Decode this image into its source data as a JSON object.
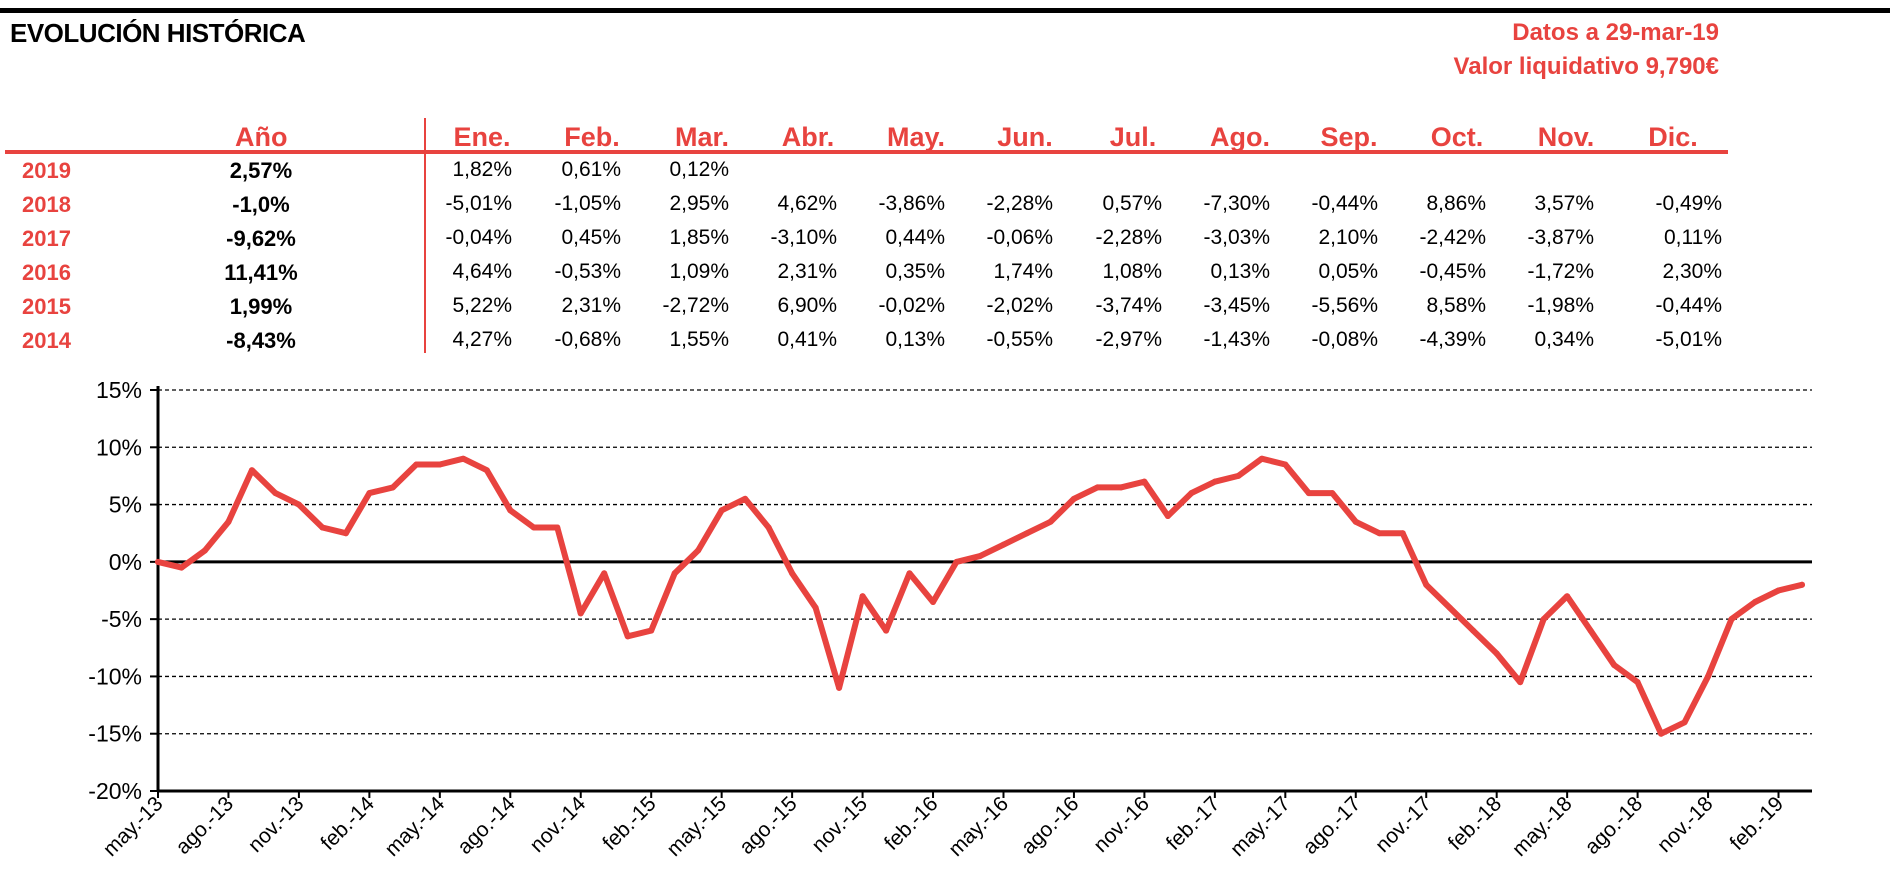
{
  "header": {
    "title": "EVOLUCIÓN HISTÓRICA",
    "date_label": "Datos a 29-mar-19",
    "nav_label": "Valor liquidativo 9,790€"
  },
  "table": {
    "year_header": "Año",
    "months": [
      "Ene.",
      "Feb.",
      "Mar.",
      "Abr.",
      "May.",
      "Jun.",
      "Jul.",
      "Ago.",
      "Sep.",
      "Oct.",
      "Nov.",
      "Dic."
    ],
    "rows": [
      {
        "year": "2019",
        "total": "2,57%",
        "values": [
          "1,82%",
          "0,61%",
          "0,12%",
          "",
          "",
          "",
          "",
          "",
          "",
          "",
          "",
          ""
        ]
      },
      {
        "year": "2018",
        "total": "-1,0%",
        "values": [
          "-5,01%",
          "-1,05%",
          "2,95%",
          "4,62%",
          "-3,86%",
          "-2,28%",
          "0,57%",
          "-7,30%",
          "-0,44%",
          "8,86%",
          "3,57%",
          "-0,49%"
        ]
      },
      {
        "year": "2017",
        "total": "-9,62%",
        "values": [
          "-0,04%",
          "0,45%",
          "1,85%",
          "-3,10%",
          "0,44%",
          "-0,06%",
          "-2,28%",
          "-3,03%",
          "2,10%",
          "-2,42%",
          "-3,87%",
          "0,11%"
        ]
      },
      {
        "year": "2016",
        "total": "11,41%",
        "values": [
          "4,64%",
          "-0,53%",
          "1,09%",
          "2,31%",
          "0,35%",
          "1,74%",
          "1,08%",
          "0,13%",
          "0,05%",
          "-0,45%",
          "-1,72%",
          "2,30%"
        ]
      },
      {
        "year": "2015",
        "total": "1,99%",
        "values": [
          "5,22%",
          "2,31%",
          "-2,72%",
          "6,90%",
          "-0,02%",
          "-2,02%",
          "-3,74%",
          "-3,45%",
          "-5,56%",
          "8,58%",
          "-1,98%",
          "-0,44%"
        ]
      },
      {
        "year": "2014",
        "total": "-8,43%",
        "values": [
          "4,27%",
          "-0,68%",
          "1,55%",
          "0,41%",
          "0,13%",
          "-0,55%",
          "-2,97%",
          "-1,43%",
          "-0,08%",
          "-4,39%",
          "0,34%",
          "-5,01%"
        ]
      }
    ]
  },
  "chart_data": {
    "type": "line",
    "title": "",
    "xlabel": "",
    "ylabel": "",
    "ylim": [
      -20,
      15
    ],
    "yticks": [
      15,
      10,
      5,
      0,
      -5,
      -10,
      -15,
      -20
    ],
    "ytick_labels": [
      "15%",
      "10%",
      "5%",
      "0%",
      "-5%",
      "-10%",
      "-15%",
      "-20%"
    ],
    "xtick_labels": [
      "may.-13",
      "ago.-13",
      "nov.-13",
      "feb.-14",
      "may.-14",
      "ago.-14",
      "nov.-14",
      "feb.-15",
      "may.-15",
      "ago.-15",
      "nov.-15",
      "feb.-16",
      "may.-16",
      "ago.-16",
      "nov.-16",
      "feb.-17",
      "may.-17",
      "ago.-17",
      "nov.-17",
      "feb.-18",
      "may.-18",
      "ago.-18",
      "nov.-18",
      "feb.-19"
    ],
    "grid": "horizontal-dashed",
    "line_color": "#e8433f",
    "series": [
      {
        "x": [
          "may.-13",
          "jun.-13",
          "jul.-13",
          "ago.-13",
          "sep.-13",
          "oct.-13",
          "nov.-13",
          "dic.-13",
          "ene.-14",
          "feb.-14",
          "mar.-14",
          "abr.-14",
          "may.-14",
          "jun.-14",
          "jul.-14",
          "ago.-14",
          "sep.-14",
          "oct.-14",
          "nov.-14",
          "dic.-14",
          "ene.-15",
          "feb.-15",
          "mar.-15",
          "abr.-15",
          "may.-15",
          "jun.-15",
          "jul.-15",
          "ago.-15",
          "sep.-15",
          "oct.-15",
          "nov.-15",
          "dic.-15",
          "ene.-16",
          "feb.-16",
          "mar.-16",
          "abr.-16",
          "may.-16",
          "jun.-16",
          "jul.-16",
          "ago.-16",
          "sep.-16",
          "oct.-16",
          "nov.-16",
          "dic.-16",
          "ene.-17",
          "feb.-17",
          "mar.-17",
          "abr.-17",
          "may.-17",
          "jun.-17",
          "jul.-17",
          "ago.-17",
          "sep.-17",
          "oct.-17",
          "nov.-17",
          "dic.-17",
          "ene.-18",
          "feb.-18",
          "mar.-18",
          "abr.-18",
          "may.-18",
          "jun.-18",
          "jul.-18",
          "ago.-18",
          "sep.-18",
          "oct.-18",
          "nov.-18",
          "dic.-18",
          "ene.-19",
          "feb.-19",
          "mar.-19"
        ],
        "values": [
          0,
          -0.5,
          1,
          3.5,
          8,
          6,
          5,
          3,
          2.5,
          6,
          6.5,
          8.5,
          8.5,
          9,
          8,
          4.5,
          3,
          3,
          -4.5,
          -1,
          -6.5,
          -6,
          -1,
          1,
          4.5,
          5.5,
          3,
          -1,
          -4,
          -11,
          -3,
          -6,
          -1,
          -3.5,
          0,
          0.5,
          1.5,
          2.5,
          3.5,
          5.5,
          6.5,
          6.5,
          7,
          4,
          6,
          7,
          7.5,
          9,
          8.5,
          6,
          6,
          3.5,
          2.5,
          2.5,
          -2,
          -4,
          -6,
          -8,
          -10.5,
          -5,
          -3,
          -6,
          -9,
          -10.5,
          -15,
          -14,
          -10,
          -5,
          -3.5,
          -2.5,
          -2
        ]
      }
    ]
  }
}
